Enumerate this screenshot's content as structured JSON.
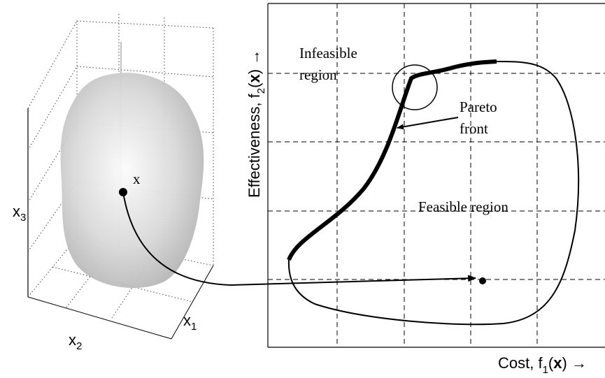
{
  "left_panel": {
    "point_label": "x",
    "axis_labels": {
      "x1": [
        "x",
        "1"
      ],
      "x2": [
        "x",
        "2"
      ],
      "x3": [
        "x",
        "3"
      ]
    }
  },
  "right_panel": {
    "y_axis_label": [
      "Effectiveness, f",
      "2",
      "(",
      "x",
      ") →"
    ],
    "x_axis_label": [
      "Cost, f",
      "1",
      "(",
      "x",
      ") →"
    ],
    "regions": {
      "infeasible": [
        "Infeasible",
        "region"
      ],
      "feasible": "Feasible region"
    },
    "pareto_label": [
      "Pareto",
      "front"
    ]
  }
}
